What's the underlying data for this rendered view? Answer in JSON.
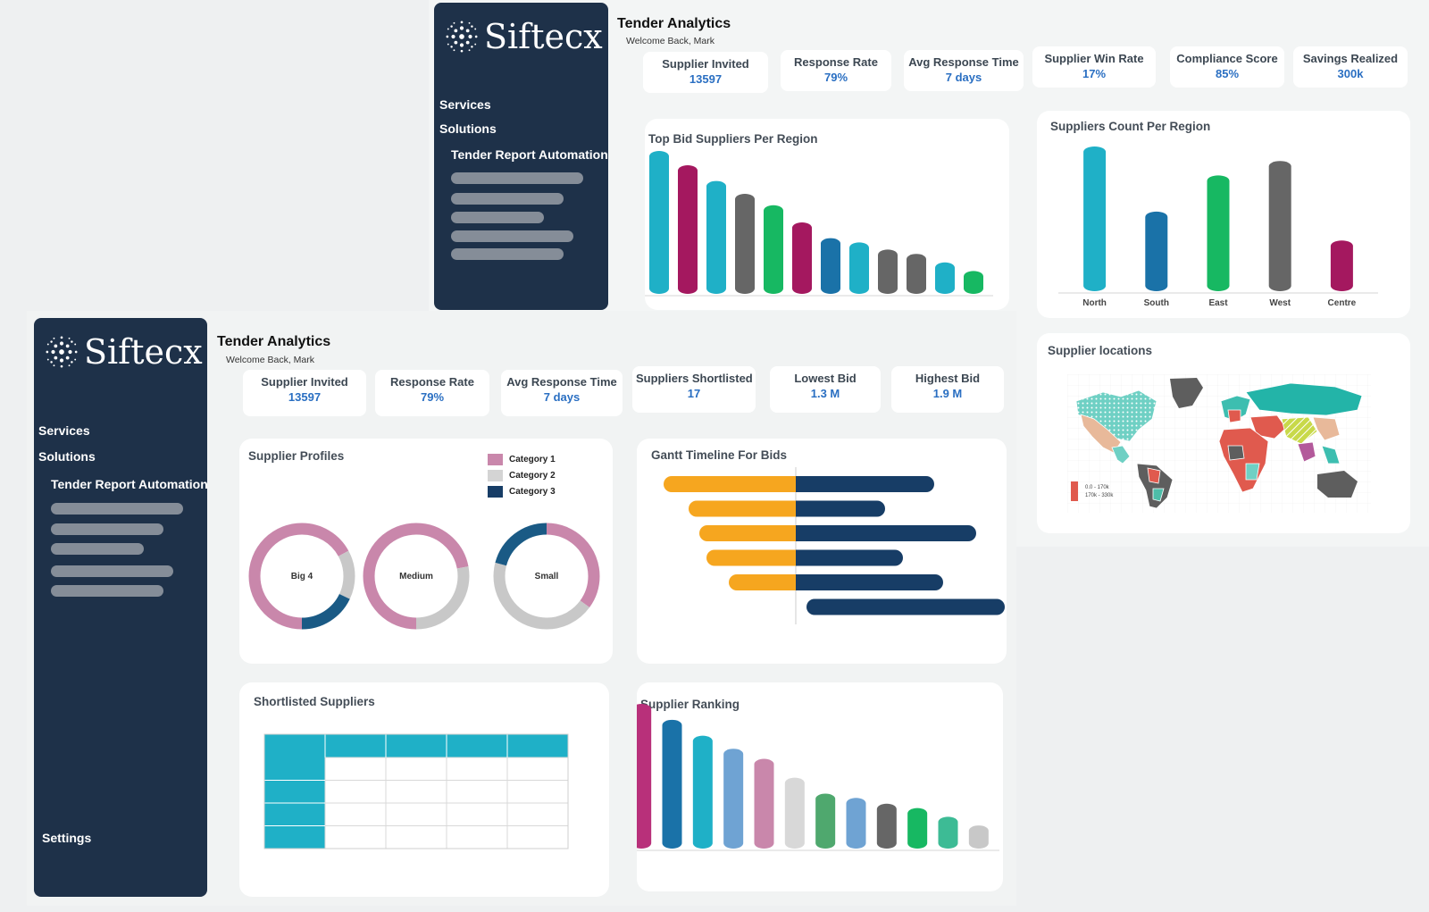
{
  "brand": {
    "name": "Siftecx"
  },
  "colors": {
    "sidebar": "#1e3149",
    "accent_blue": "#2a6fc2",
    "teal": "#1fb0c7",
    "magenta": "#a4185f",
    "gray": "#666666",
    "green": "#17b862",
    "navy": "#173d66",
    "orange": "#f6a61f",
    "pink": "#c987ab"
  },
  "top": {
    "header": {
      "title": "Tender Analytics",
      "subtitle": "Welcome Back, Mark"
    },
    "nav": {
      "services": "Services",
      "solutions": "Solutions",
      "tender_report": "Tender Report Automation"
    },
    "kpis": [
      {
        "label": "Supplier Invited",
        "value": "13597"
      },
      {
        "label": "Response Rate",
        "value": "79%"
      },
      {
        "label": "Avg Response Time",
        "value": "7 days"
      },
      {
        "label": "Supplier Win Rate",
        "value": "17%"
      },
      {
        "label": "Compliance Score",
        "value": "85%"
      },
      {
        "label": "Savings Realized",
        "value": "300k"
      }
    ],
    "top_bid": {
      "title": "Top Bid Suppliers Per Region"
    },
    "count_region": {
      "title": "Suppliers Count Per Region"
    },
    "locations": {
      "title": "Supplier locations",
      "legend": [
        "0.0 - 170k",
        "170k - 330k"
      ]
    }
  },
  "bottom": {
    "header": {
      "title": "Tender Analytics",
      "subtitle": "Welcome Back, Mark"
    },
    "nav": {
      "services": "Services",
      "solutions": "Solutions",
      "tender_report": "Tender Report Automation",
      "settings": "Settings"
    },
    "kpis": [
      {
        "label": "Supplier Invited",
        "value": "13597"
      },
      {
        "label": "Response Rate",
        "value": "79%"
      },
      {
        "label": "Avg Response Time",
        "value": "7 days"
      },
      {
        "label": "Suppliers Shortlisted",
        "value": "17"
      },
      {
        "label": "Lowest Bid",
        "value": "1.3 M"
      },
      {
        "label": "Highest Bid",
        "value": "1.9 M"
      }
    ],
    "profiles": {
      "title": "Supplier Profiles",
      "legend": [
        "Category 1",
        "Category 2",
        "Category 3"
      ]
    },
    "gantt": {
      "title": "Gantt Timeline For Bids"
    },
    "shortlisted": {
      "title": "Shortlisted Suppliers"
    },
    "ranking": {
      "title": "Supplier Ranking"
    }
  },
  "chart_data": [
    {
      "type": "bar",
      "title": "Top Bid Suppliers Per Region",
      "values": [
        100,
        90,
        79,
        70,
        62,
        50,
        39,
        36,
        31,
        28,
        22,
        16
      ],
      "colors": [
        "#1fb0c7",
        "#a4185f",
        "#1fb0c7",
        "#666666",
        "#17b862",
        "#a4185f",
        "#1a72a8",
        "#1fb0c7",
        "#666666",
        "#666666",
        "#1fb0c7",
        "#17b862"
      ],
      "ylim": [
        0,
        100
      ]
    },
    {
      "type": "bar",
      "title": "Suppliers Count Per Region",
      "categories": [
        "North",
        "South",
        "East",
        "West",
        "Centre"
      ],
      "values": [
        100,
        55,
        80,
        90,
        35
      ],
      "colors": [
        "#1fb0c7",
        "#1a72a8",
        "#17b862",
        "#666666",
        "#a4185f"
      ],
      "ylim": [
        0,
        100
      ]
    },
    {
      "type": "pie",
      "title": "Supplier Profiles",
      "series": [
        {
          "name": "Big 4",
          "values": [
            67,
            15,
            18
          ]
        },
        {
          "name": "Medium",
          "values": [
            72,
            28,
            0
          ]
        },
        {
          "name": "Small",
          "values": [
            35,
            44,
            21
          ]
        }
      ],
      "categories": [
        "Category 1",
        "Category 2",
        "Category 3"
      ],
      "colors": [
        "#c987ab",
        "#c8c8c8",
        "#1a5a85"
      ]
    },
    {
      "type": "bar",
      "title": "Gantt Timeline For Bids",
      "rows": [
        {
          "start": -148,
          "end": 155
        },
        {
          "start": -120,
          "end": 100
        },
        {
          "start": -108,
          "end": 202
        },
        {
          "start": -100,
          "end": 120
        },
        {
          "start": -75,
          "end": 165
        },
        {
          "start": 12,
          "end": 222
        }
      ],
      "colors": [
        "#f6a61f",
        "#173d66"
      ]
    },
    {
      "type": "table",
      "title": "Shortlisted Suppliers",
      "columns": 5,
      "rows": 4
    },
    {
      "type": "bar",
      "title": "Supplier Ranking",
      "values": [
        100,
        89,
        78,
        69,
        62,
        49,
        38,
        35,
        31,
        28,
        22,
        16
      ],
      "colors": [
        "#b8307a",
        "#1a72a8",
        "#1fb0c7",
        "#6fa3d3",
        "#c987ab",
        "#d8d8d8",
        "#4fa86e",
        "#6fa3d3",
        "#666666",
        "#17b862",
        "#3dbb95",
        "#c8c8c8"
      ],
      "ylim": [
        0,
        100
      ]
    }
  ]
}
